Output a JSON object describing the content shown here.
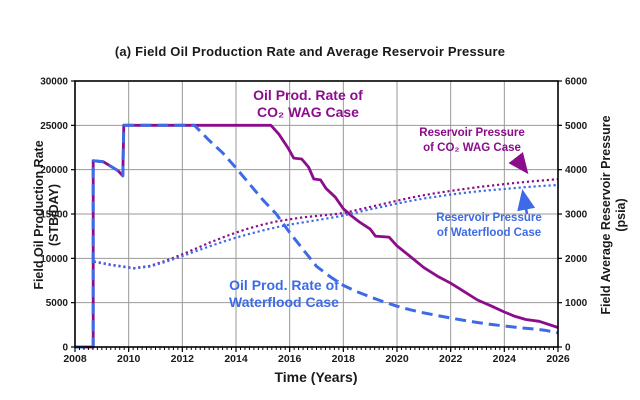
{
  "title": "(a) Field Oil Production Rate and Average Reservoir Pressure",
  "chart_data": {
    "type": "line",
    "title": "(a) Field Oil Production Rate and Average Reservoir Pressure",
    "xlabel": "Time (Years)",
    "ylabel_left": "Field Oil Production Rate",
    "ylabel_left_units": "(STB/DAY)",
    "ylabel_right": "Field Average Reservoir Pressure",
    "ylabel_right_units": "(psia)",
    "x_range": [
      2008,
      2026
    ],
    "y_left_range": [
      0,
      30000
    ],
    "y_right_range": [
      0,
      6000
    ],
    "x_ticks": [
      2008,
      2010,
      2012,
      2014,
      2016,
      2018,
      2020,
      2022,
      2024,
      2026
    ],
    "y_left_ticks": [
      0,
      5000,
      10000,
      15000,
      20000,
      25000,
      30000
    ],
    "y_right_ticks": [
      0,
      1000,
      2000,
      3000,
      4000,
      5000,
      6000
    ],
    "grid": true,
    "legend_position": "in-plot text annotations",
    "colors": {
      "co2_wag": "#8B0D8B",
      "waterflood": "#3D6BE8",
      "grid": "#999999",
      "axis": "#000000",
      "text": "#1a1a1a"
    },
    "series": [
      {
        "id": "oil-rate-co2-wag",
        "name": "Oil Prod. Rate of CO₂ WAG Case",
        "axis": "left",
        "style": "solid",
        "width": 2.8,
        "color_key": "co2_wag",
        "points": [
          [
            2008.0,
            0
          ],
          [
            2008.68,
            0
          ],
          [
            2008.68,
            21000
          ],
          [
            2009.05,
            20900
          ],
          [
            2009.6,
            19900
          ],
          [
            2009.78,
            19300
          ],
          [
            2009.82,
            25000
          ],
          [
            2015.3,
            25000
          ],
          [
            2015.6,
            24000
          ],
          [
            2015.95,
            22400
          ],
          [
            2016.15,
            21300
          ],
          [
            2016.45,
            21200
          ],
          [
            2016.7,
            20300
          ],
          [
            2016.9,
            18950
          ],
          [
            2017.15,
            18850
          ],
          [
            2017.35,
            17900
          ],
          [
            2017.7,
            16900
          ],
          [
            2018.0,
            15600
          ],
          [
            2018.3,
            14800
          ],
          [
            2018.6,
            14100
          ],
          [
            2019.0,
            13300
          ],
          [
            2019.2,
            12500
          ],
          [
            2019.7,
            12400
          ],
          [
            2020.0,
            11400
          ],
          [
            2020.5,
            10200
          ],
          [
            2021.0,
            8950
          ],
          [
            2021.5,
            8000
          ],
          [
            2022.0,
            7200
          ],
          [
            2022.5,
            6250
          ],
          [
            2023.0,
            5300
          ],
          [
            2023.5,
            4650
          ],
          [
            2024.0,
            3950
          ],
          [
            2024.4,
            3450
          ],
          [
            2024.8,
            3100
          ],
          [
            2025.3,
            2900
          ],
          [
            2026.0,
            2200
          ]
        ]
      },
      {
        "id": "oil-rate-waterflood",
        "name": "Oil Prod. Rate of Waterflood Case",
        "axis": "left",
        "style": "dashed",
        "width": 3,
        "color_key": "waterflood",
        "points": [
          [
            2008.0,
            0
          ],
          [
            2008.68,
            0
          ],
          [
            2008.68,
            21000
          ],
          [
            2009.05,
            20900
          ],
          [
            2009.6,
            19900
          ],
          [
            2009.78,
            19300
          ],
          [
            2009.82,
            25000
          ],
          [
            2012.45,
            25000
          ],
          [
            2013.0,
            23300
          ],
          [
            2013.5,
            21900
          ],
          [
            2014.0,
            20200
          ],
          [
            2014.5,
            18400
          ],
          [
            2015.0,
            16600
          ],
          [
            2015.5,
            15000
          ],
          [
            2016.0,
            12900
          ],
          [
            2016.5,
            11000
          ],
          [
            2017.0,
            9100
          ],
          [
            2017.5,
            7950
          ],
          [
            2018.0,
            6950
          ],
          [
            2018.5,
            6250
          ],
          [
            2019.0,
            5650
          ],
          [
            2019.5,
            5100
          ],
          [
            2020.0,
            4600
          ],
          [
            2020.5,
            4200
          ],
          [
            2021.0,
            3850
          ],
          [
            2021.5,
            3550
          ],
          [
            2022.0,
            3270
          ],
          [
            2022.5,
            3000
          ],
          [
            2023.0,
            2760
          ],
          [
            2023.5,
            2550
          ],
          [
            2024.0,
            2370
          ],
          [
            2024.5,
            2200
          ],
          [
            2025.0,
            2050
          ],
          [
            2025.5,
            1900
          ],
          [
            2026.0,
            1600
          ]
        ]
      },
      {
        "id": "pressure-co2-wag",
        "name": "Reservoir Pressure of CO₂ WAG Case",
        "axis": "right",
        "style": "dotted",
        "width": 2.2,
        "color_key": "co2_wag",
        "points": [
          [
            2008.7,
            1930
          ],
          [
            2009.3,
            1860
          ],
          [
            2010.2,
            1780
          ],
          [
            2010.8,
            1830
          ],
          [
            2011.4,
            1950
          ],
          [
            2012.0,
            2090
          ],
          [
            2012.5,
            2220
          ],
          [
            2013.0,
            2350
          ],
          [
            2013.5,
            2470
          ],
          [
            2014.0,
            2580
          ],
          [
            2014.5,
            2680
          ],
          [
            2015.0,
            2760
          ],
          [
            2015.5,
            2830
          ],
          [
            2016.0,
            2880
          ],
          [
            2016.5,
            2925
          ],
          [
            2017.0,
            2955
          ],
          [
            2017.5,
            2985
          ],
          [
            2018.0,
            3020
          ],
          [
            2018.5,
            3090
          ],
          [
            2019.0,
            3160
          ],
          [
            2019.5,
            3230
          ],
          [
            2020.0,
            3300
          ],
          [
            2020.5,
            3365
          ],
          [
            2021.0,
            3425
          ],
          [
            2021.5,
            3475
          ],
          [
            2022.0,
            3520
          ],
          [
            2022.5,
            3565
          ],
          [
            2023.0,
            3605
          ],
          [
            2023.5,
            3640
          ],
          [
            2024.0,
            3675
          ],
          [
            2024.5,
            3705
          ],
          [
            2025.0,
            3735
          ],
          [
            2025.5,
            3760
          ],
          [
            2026.0,
            3785
          ]
        ]
      },
      {
        "id": "pressure-waterflood",
        "name": "Reservoir Pressure of Waterflood Case",
        "axis": "right",
        "style": "dotted",
        "width": 2.2,
        "color_key": "waterflood",
        "points": [
          [
            2008.7,
            1925
          ],
          [
            2009.3,
            1850
          ],
          [
            2010.2,
            1770
          ],
          [
            2010.8,
            1815
          ],
          [
            2011.4,
            1925
          ],
          [
            2012.0,
            2050
          ],
          [
            2012.5,
            2160
          ],
          [
            2013.0,
            2270
          ],
          [
            2013.5,
            2370
          ],
          [
            2014.0,
            2465
          ],
          [
            2014.5,
            2550
          ],
          [
            2015.0,
            2630
          ],
          [
            2015.5,
            2700
          ],
          [
            2016.0,
            2760
          ],
          [
            2016.5,
            2810
          ],
          [
            2017.0,
            2860
          ],
          [
            2017.5,
            2910
          ],
          [
            2018.0,
            2965
          ],
          [
            2018.5,
            3035
          ],
          [
            2019.0,
            3105
          ],
          [
            2019.5,
            3170
          ],
          [
            2020.0,
            3235
          ],
          [
            2020.5,
            3295
          ],
          [
            2021.0,
            3350
          ],
          [
            2021.5,
            3395
          ],
          [
            2022.0,
            3440
          ],
          [
            2022.5,
            3475
          ],
          [
            2023.0,
            3510
          ],
          [
            2023.5,
            3540
          ],
          [
            2024.0,
            3565
          ],
          [
            2024.5,
            3590
          ],
          [
            2025.0,
            3615
          ],
          [
            2025.5,
            3635
          ],
          [
            2026.0,
            3655
          ]
        ]
      }
    ]
  },
  "annotations": {
    "co2_rate_label": {
      "line1": "Oil Prod. Rate of",
      "line2": "CO₂ WAG Case"
    },
    "waterflood_rate_label": {
      "line1": "Oil Prod. Rate of",
      "line2": "Waterflood Case"
    },
    "co2_pressure_label": {
      "line1": "Reservoir Pressure",
      "line2": "of CO₂ WAG Case"
    },
    "waterflood_pressure_label": {
      "line1": "Reservoir Pressure",
      "line2": "of Waterflood Case"
    }
  }
}
